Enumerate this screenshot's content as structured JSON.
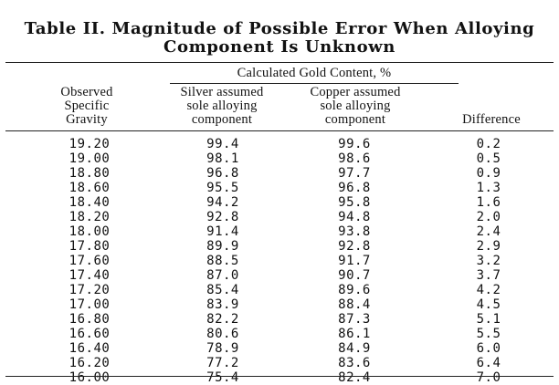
{
  "table": {
    "title_line1": "Table II.  Magnitude of Possible Error When Alloying",
    "title_line2": "Component Is Unknown",
    "group_header": "Calculated Gold Content, %",
    "col1_header": [
      "Observed",
      "Specific",
      "Gravity"
    ],
    "col2_header": [
      "Silver assumed",
      "sole alloying",
      "component"
    ],
    "col3_header": [
      "Copper assumed",
      "sole alloying",
      "component"
    ],
    "col4_header": "Difference",
    "rows": [
      {
        "sg": "19.20",
        "silver": "99.4",
        "copper": "99.6",
        "diff": "0.2"
      },
      {
        "sg": "19.00",
        "silver": "98.1",
        "copper": "98.6",
        "diff": "0.5"
      },
      {
        "sg": "18.80",
        "silver": "96.8",
        "copper": "97.7",
        "diff": "0.9"
      },
      {
        "sg": "18.60",
        "silver": "95.5",
        "copper": "96.8",
        "diff": "1.3"
      },
      {
        "sg": "18.40",
        "silver": "94.2",
        "copper": "95.8",
        "diff": "1.6"
      },
      {
        "sg": "18.20",
        "silver": "92.8",
        "copper": "94.8",
        "diff": "2.0"
      },
      {
        "sg": "18.00",
        "silver": "91.4",
        "copper": "93.8",
        "diff": "2.4"
      },
      {
        "sg": "17.80",
        "silver": "89.9",
        "copper": "92.8",
        "diff": "2.9"
      },
      {
        "sg": "17.60",
        "silver": "88.5",
        "copper": "91.7",
        "diff": "3.2"
      },
      {
        "sg": "17.40",
        "silver": "87.0",
        "copper": "90.7",
        "diff": "3.7"
      },
      {
        "sg": "17.20",
        "silver": "85.4",
        "copper": "89.6",
        "diff": "4.2"
      },
      {
        "sg": "17.00",
        "silver": "83.9",
        "copper": "88.4",
        "diff": "4.5"
      },
      {
        "sg": "16.80",
        "silver": "82.2",
        "copper": "87.3",
        "diff": "5.1"
      },
      {
        "sg": "16.60",
        "silver": "80.6",
        "copper": "86.1",
        "diff": "5.5"
      },
      {
        "sg": "16.40",
        "silver": "78.9",
        "copper": "84.9",
        "diff": "6.0"
      },
      {
        "sg": "16.20",
        "silver": "77.2",
        "copper": "83.6",
        "diff": "6.4"
      },
      {
        "sg": "16.00",
        "silver": "75.4",
        "copper": "82.4",
        "diff": "7.0"
      }
    ]
  }
}
